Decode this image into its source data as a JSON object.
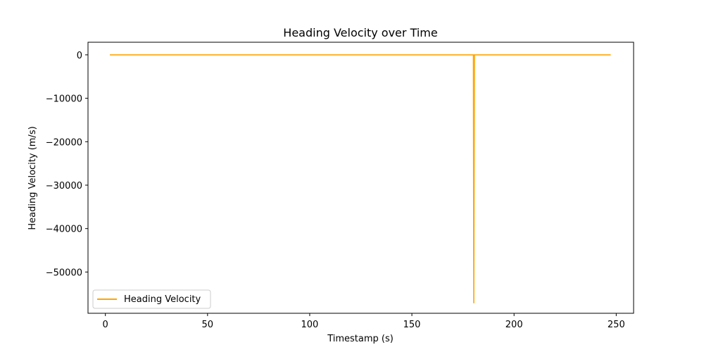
{
  "chart_data": {
    "type": "line",
    "title": "Heading Velocity over Time",
    "xlabel": "Timestamp (s)",
    "ylabel": "Heading Velocity (m/s)",
    "xlim": [
      -8.5,
      258.5
    ],
    "ylim": [
      -59500,
      2900
    ],
    "xticks": [
      0,
      50,
      100,
      150,
      200,
      250
    ],
    "xtick_labels": [
      "0",
      "50",
      "100",
      "150",
      "200",
      "250"
    ],
    "yticks": [
      0,
      -10000,
      -20000,
      -30000,
      -40000,
      -50000
    ],
    "ytick_labels": [
      "0",
      "−10000",
      "−20000",
      "−30000",
      "−40000",
      "−50000"
    ],
    "grid": false,
    "legend": {
      "position": "lower-left",
      "entries": [
        "Heading Velocity"
      ]
    },
    "series": [
      {
        "name": "Heading Velocity",
        "color": "#ffa500",
        "x": [
          2.2,
          60,
          120,
          170,
          180.1,
          180.3,
          180.6,
          181,
          200,
          247.3
        ],
        "y": [
          0,
          0,
          0,
          0,
          0,
          -57200,
          0,
          0,
          0,
          0
        ]
      }
    ]
  }
}
